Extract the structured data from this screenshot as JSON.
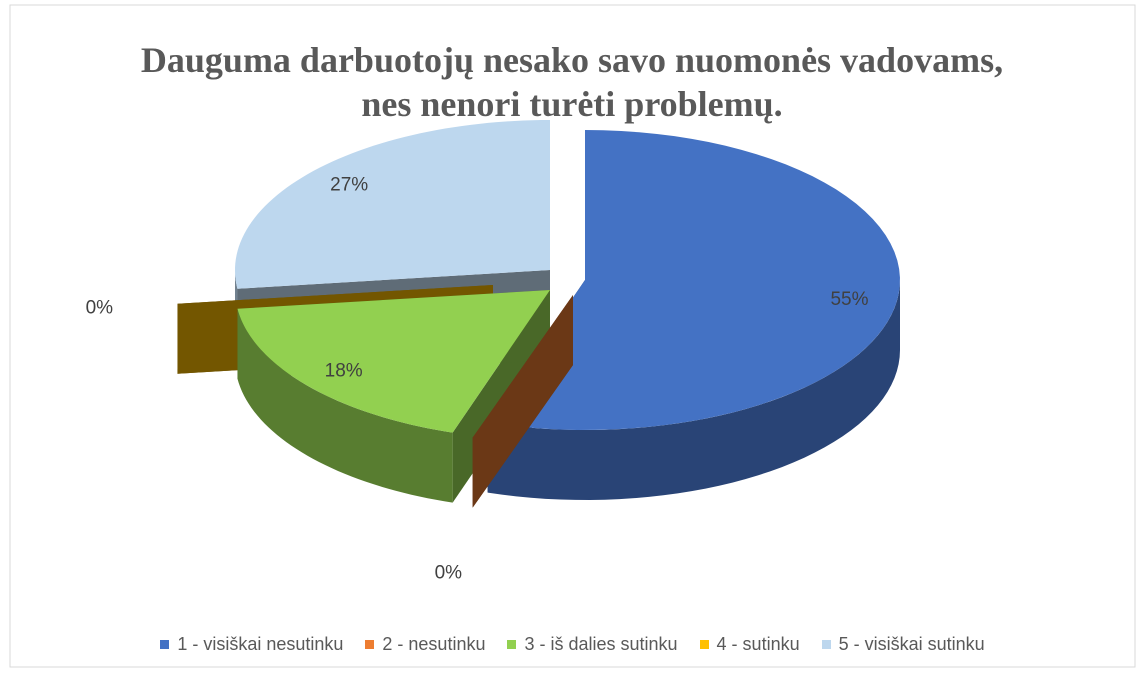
{
  "chart_data": {
    "type": "pie3d",
    "title": "Dauguma darbuotojų nesako savo nuomonės vadovams, nes nenori turėti problemų.",
    "categories": [
      "1 - visiškai nesutinku",
      "2 - nesutinku",
      "3 - iš dalies sutinku",
      "4 - sutinku",
      "5 - visiškai sutinku"
    ],
    "values": [
      55,
      0,
      18,
      0,
      27
    ],
    "value_labels": [
      "55%",
      "0%",
      "18%",
      "0%",
      "27%"
    ],
    "colors": [
      "#4472c4",
      "#ed7d31",
      "#92d050",
      "#ffc000",
      "#bdd7ee"
    ],
    "legend": "bottom"
  }
}
